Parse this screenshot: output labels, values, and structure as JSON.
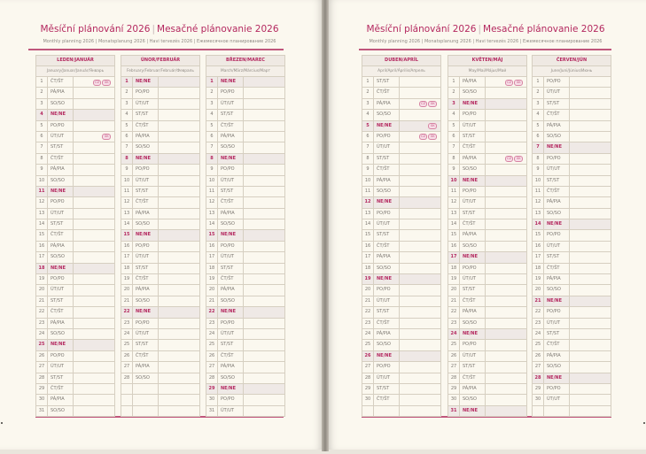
{
  "colors": {
    "accent": "#b4285f",
    "sunday_bg": "#efe9e6",
    "grid": "#d6cfc1"
  },
  "pages": [
    {
      "title_cz": "Měsíční plánování 2026",
      "title_sk": "Mesačné plánovanie 2026",
      "subtitle": "Monthly planning 2026 | Monatsplanung 2026 | Havi tervezés 2026 | Ежемесячное планирование 2026",
      "months": [
        {
          "name": "LEDEN/JANUÁR",
          "subtitle": "January/Januar/Január/Январь",
          "days": [
            "ČT/ŠT",
            "PÁ/PIA",
            "SO/SO",
            "NE/NE",
            "PO/PO",
            "ÚT/UT",
            "ST/ST",
            "ČT/ŠT",
            "PÁ/PIA",
            "SO/SO",
            "NE/NE",
            "PO/PO",
            "ÚT/UT",
            "ST/ST",
            "ČT/ŠT",
            "PÁ/PIA",
            "SO/SO",
            "NE/NE",
            "PO/PO",
            "ÚT/UT",
            "ST/ST",
            "ČT/ŠT",
            "PÁ/PIA",
            "SO/SO",
            "NE/NE",
            "PO/PO",
            "ÚT/UT",
            "ST/ST",
            "ČT/ŠT",
            "PÁ/PIA",
            "SO/SO"
          ],
          "holidays": {
            "1": [
              "CZ",
              "SK"
            ],
            "6": [
              "SK"
            ]
          }
        },
        {
          "name": "ÚNOR/FEBRUÁR",
          "subtitle": "February/Februar/Február/Февраль",
          "days": [
            "NE/NE",
            "PO/PO",
            "ÚT/UT",
            "ST/ST",
            "ČT/ŠT",
            "PÁ/PIA",
            "SO/SO",
            "NE/NE",
            "PO/PO",
            "ÚT/UT",
            "ST/ST",
            "ČT/ŠT",
            "PÁ/PIA",
            "SO/SO",
            "NE/NE",
            "PO/PO",
            "ÚT/UT",
            "ST/ST",
            "ČT/ŠT",
            "PÁ/PIA",
            "SO/SO",
            "NE/NE",
            "PO/PO",
            "ÚT/UT",
            "ST/ST",
            "ČT/ŠT",
            "PÁ/PIA",
            "SO/SO"
          ],
          "holidays": {}
        },
        {
          "name": "BŘEZEN/MAREC",
          "subtitle": "March/März/Március/Март",
          "days": [
            "NE/NE",
            "PO/PO",
            "ÚT/UT",
            "ST/ST",
            "ČT/ŠT",
            "PÁ/PIA",
            "SO/SO",
            "NE/NE",
            "PO/PO",
            "ÚT/UT",
            "ST/ST",
            "ČT/ŠT",
            "PÁ/PIA",
            "SO/SO",
            "NE/NE",
            "PO/PO",
            "ÚT/UT",
            "ST/ST",
            "ČT/ŠT",
            "PÁ/PIA",
            "SO/SO",
            "NE/NE",
            "PO/PO",
            "ÚT/UT",
            "ST/ST",
            "ČT/ŠT",
            "PÁ/PIA",
            "SO/SO",
            "NE/NE",
            "PO/PO",
            "ÚT/UT"
          ],
          "holidays": {}
        }
      ]
    },
    {
      "title_cz": "Měsíční plánování 2026",
      "title_sk": "Mesačné plánovanie 2026",
      "subtitle": "Monthly planning 2026 | Monatsplanung 2026 | Havi tervezés 2026 | Ежемесячное планирование 2026",
      "months": [
        {
          "name": "DUBEN/APRÍL",
          "subtitle": "April/April/Április/Апрель",
          "days": [
            "ST/ST",
            "ČT/ŠT",
            "PÁ/PIA",
            "SO/SO",
            "NE/NE",
            "PO/PO",
            "ÚT/UT",
            "ST/ST",
            "ČT/ŠT",
            "PÁ/PIA",
            "SO/SO",
            "NE/NE",
            "PO/PO",
            "ÚT/UT",
            "ST/ST",
            "ČT/ŠT",
            "PÁ/PIA",
            "SO/SO",
            "NE/NE",
            "PO/PO",
            "ÚT/UT",
            "ST/ST",
            "ČT/ŠT",
            "PÁ/PIA",
            "SO/SO",
            "NE/NE",
            "PO/PO",
            "ÚT/UT",
            "ST/ST",
            "ČT/ŠT"
          ],
          "holidays": {
            "3": [
              "CZ",
              "SK"
            ],
            "5": [
              "SK"
            ],
            "6": [
              "CZ",
              "SK"
            ]
          }
        },
        {
          "name": "KVĚTEN/MÁJ",
          "subtitle": "May/Mai/Május/Май",
          "days": [
            "PÁ/PIA",
            "SO/SO",
            "NE/NE",
            "PO/PO",
            "ÚT/UT",
            "ST/ST",
            "ČT/ŠT",
            "PÁ/PIA",
            "SO/SO",
            "NE/NE",
            "PO/PO",
            "ÚT/UT",
            "ST/ST",
            "ČT/ŠT",
            "PÁ/PIA",
            "SO/SO",
            "NE/NE",
            "PO/PO",
            "ÚT/UT",
            "ST/ST",
            "ČT/ŠT",
            "PÁ/PIA",
            "SO/SO",
            "NE/NE",
            "PO/PO",
            "ÚT/UT",
            "ST/ST",
            "ČT/ŠT",
            "PÁ/PIA",
            "SO/SO",
            "NE/NE"
          ],
          "holidays": {
            "1": [
              "CZ",
              "SK"
            ],
            "8": [
              "CZ",
              "SK"
            ]
          }
        },
        {
          "name": "ČERVEN/JÚN",
          "subtitle": "June/Juni/Június/Июнь",
          "days": [
            "PO/PO",
            "ÚT/UT",
            "ST/ST",
            "ČT/ŠT",
            "PÁ/PIA",
            "SO/SO",
            "NE/NE",
            "PO/PO",
            "ÚT/UT",
            "ST/ST",
            "ČT/ŠT",
            "PÁ/PIA",
            "SO/SO",
            "NE/NE",
            "PO/PO",
            "ÚT/UT",
            "ST/ST",
            "ČT/ŠT",
            "PÁ/PIA",
            "SO/SO",
            "NE/NE",
            "PO/PO",
            "ÚT/UT",
            "ST/ST",
            "ČT/ŠT",
            "PÁ/PIA",
            "SO/SO",
            "NE/NE",
            "PO/PO",
            "ÚT/UT"
          ],
          "holidays": {}
        }
      ]
    }
  ]
}
